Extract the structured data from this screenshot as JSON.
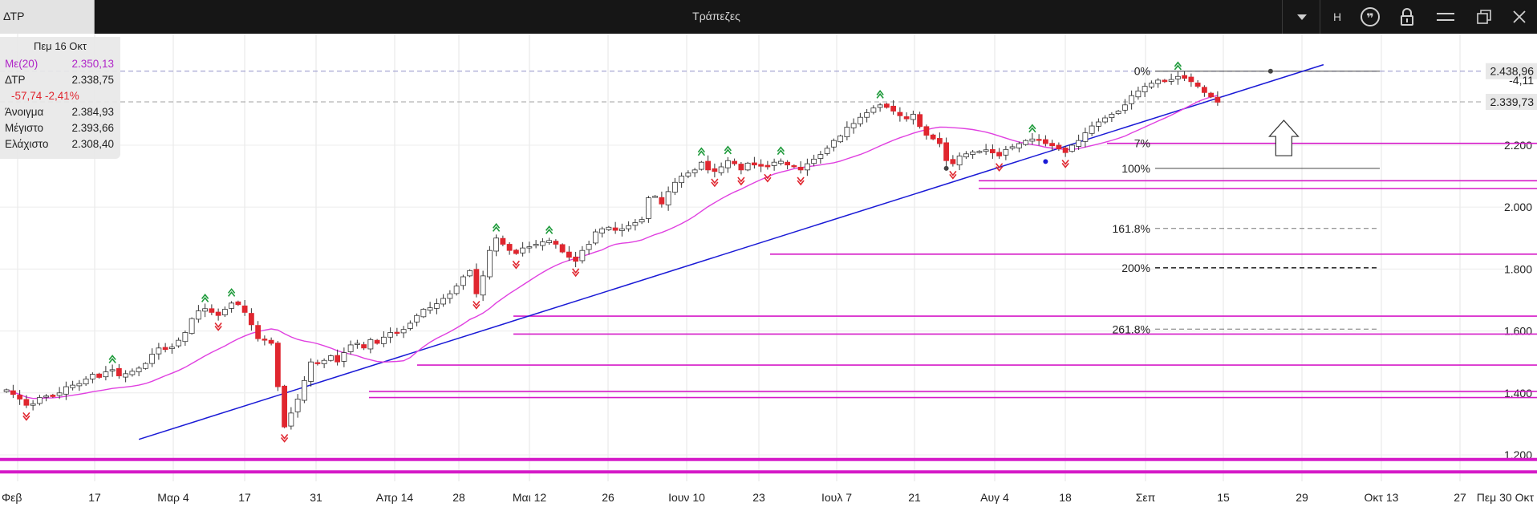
{
  "window": {
    "symbol_tab": "ΔΤΡ",
    "title": "Τράπεζες",
    "h_button": "H",
    "icons": [
      "chevron-down-icon",
      "quote-icon",
      "lock-icon",
      "menu-icon",
      "restore-icon",
      "close-icon"
    ]
  },
  "info_panel": {
    "date": "Πεμ 16 Οκτ",
    "ma_label": "Με(20)",
    "ma_value": "2.350,13",
    "symbol_label": "ΔΤΡ",
    "last_value": "2.338,75",
    "change": "-57,74 -2,41%",
    "open_label": "Άνοιγμα",
    "open_value": "2.384,93",
    "high_label": "Μέγιστο",
    "high_value": "2.393,66",
    "low_label": "Ελάχιστο",
    "low_value": "2.308,40"
  },
  "colors": {
    "up_candle": "#ffffff",
    "down_candle": "#e0262f",
    "ma_line": "#e040e0",
    "trendline": "#1a1ad6",
    "horizontal_lines": "#d51ac8",
    "signal_up": "#1d9a3a",
    "signal_down": "#e0262f"
  },
  "chart_data": {
    "type": "candlestick",
    "x_ticks": [
      "Φεβ",
      "17",
      "Μαρ 4",
      "17",
      "31",
      "Απρ 14",
      "28",
      "Μαι 12",
      "26",
      "Ιουν 10",
      "23",
      "Ιουλ 7",
      "21",
      "Αυγ 4",
      "18",
      "Σεπ",
      "15",
      "29",
      "Οκτ 13",
      "27",
      "Πεμ 30 Οκτ"
    ],
    "y_ticks": [
      "1.200",
      "1.400",
      "1.600",
      "1.800",
      "2.000",
      "2.200"
    ],
    "ylim": [
      1130,
      2560
    ],
    "price_labels": [
      "2.438,96",
      "2.339,73"
    ],
    "price_levels": [
      2438.96,
      2339.73
    ],
    "ma_label_partial": "-4,11",
    "fib_labels": [
      "0%",
      "100%",
      "161.8%",
      "200%",
      "261.8%"
    ],
    "fib_partial_label": "7%",
    "fib_levels": [
      2438.96,
      2125,
      1931,
      1804,
      1606
    ],
    "horizontal_levels": [
      2206,
      2085,
      2060,
      1848,
      1648,
      1590,
      1490,
      1405,
      1385,
      1185,
      1145
    ],
    "trendline": {
      "start": [
        20,
        1250
      ],
      "end": [
        199,
        2460
      ]
    },
    "arrow_up_at_index": 193,
    "series": [
      {
        "name": "ΔΤΡ",
        "values": [
          1410,
          1395,
          1380,
          1360,
          1365,
          1385,
          1390,
          1388,
          1400,
          1420,
          1425,
          1430,
          1445,
          1460,
          1450,
          1468,
          1475,
          1455,
          1462,
          1470,
          1480,
          1495,
          1525,
          1545,
          1540,
          1548,
          1570,
          1595,
          1640,
          1665,
          1672,
          1660,
          1650,
          1670,
          1690,
          1685,
          1660,
          1620,
          1575,
          1570,
          1560,
          1420,
          1290,
          1335,
          1380,
          1440,
          1500,
          1495,
          1505,
          1520,
          1500,
          1530,
          1555,
          1560,
          1545,
          1572,
          1560,
          1580,
          1595,
          1592,
          1605,
          1625,
          1650,
          1670,
          1675,
          1688,
          1705,
          1720,
          1745,
          1775,
          1795,
          1720,
          1778,
          1860,
          1900,
          1880,
          1860,
          1850,
          1868,
          1872,
          1880,
          1888,
          1892,
          1880,
          1855,
          1838,
          1825,
          1860,
          1880,
          1920,
          1930,
          1935,
          1925,
          1930,
          1940,
          1950,
          1960,
          2030,
          2035,
          2010,
          2050,
          2080,
          2100,
          2110,
          2120,
          2145,
          2120,
          2115,
          2130,
          2150,
          2140,
          2120,
          2142,
          2136,
          2132,
          2130,
          2145,
          2148,
          2136,
          2130,
          2120,
          2140,
          2155,
          2170,
          2190,
          2215,
          2230,
          2258,
          2270,
          2290,
          2305,
          2320,
          2330,
          2322,
          2310,
          2295,
          2285,
          2300,
          2260,
          2232,
          2220,
          2205,
          2150,
          2140,
          2165,
          2172,
          2178,
          2180,
          2185,
          2175,
          2165,
          2186,
          2195,
          2205,
          2215,
          2220,
          2218,
          2205,
          2198,
          2188,
          2176,
          2200,
          2215,
          2240,
          2262,
          2275,
          2288,
          2300,
          2310,
          2330,
          2360,
          2375,
          2390,
          2400,
          2410,
          2405,
          2412,
          2422,
          2416,
          2405,
          2390,
          2370,
          2356,
          2338.75
        ]
      }
    ]
  }
}
